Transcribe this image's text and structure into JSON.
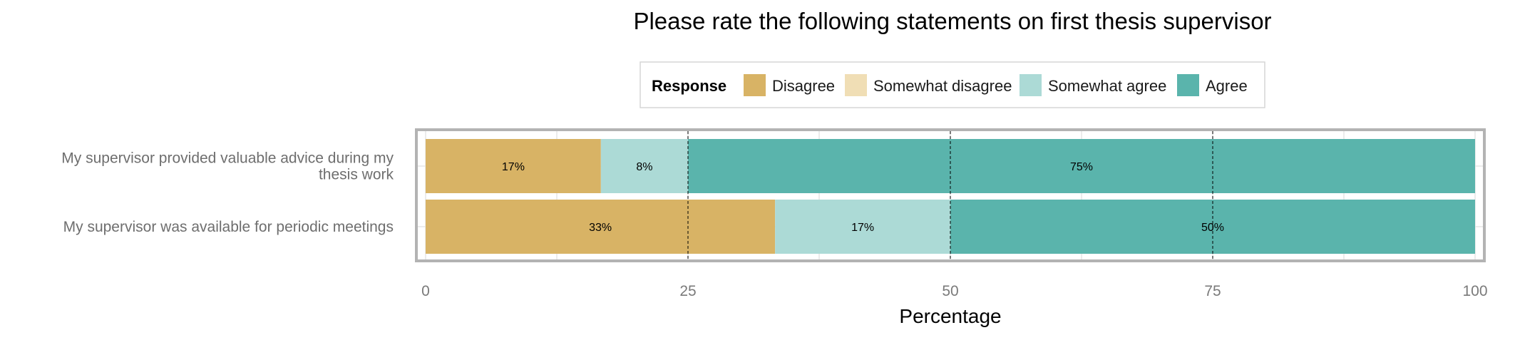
{
  "chart_data": {
    "type": "bar",
    "orientation": "horizontal",
    "stacked": true,
    "title": "Please rate the following statements on first thesis supervisor",
    "xlabel": "Percentage",
    "ylabel": "",
    "xlim": [
      0,
      100
    ],
    "xticks": [
      0,
      25,
      50,
      75,
      100
    ],
    "reference_lines": [
      25,
      50,
      75
    ],
    "grid": true,
    "legend": {
      "title": "Response",
      "position": "top",
      "entries": [
        "Disagree",
        "Somewhat disagree",
        "Somewhat agree",
        "Agree"
      ]
    },
    "categories": [
      [
        "My supervisor provided valuable advice during my",
        "thesis work"
      ],
      [
        "My supervisor was available for periodic meetings"
      ]
    ],
    "series": [
      {
        "name": "Disagree",
        "color": "#d8b365",
        "values": [
          16.7,
          33.3
        ],
        "labels": [
          "17%",
          "33%"
        ]
      },
      {
        "name": "Somewhat disagree",
        "color": "#f0deb5",
        "values": [
          0,
          0
        ],
        "labels": [
          "",
          ""
        ]
      },
      {
        "name": "Somewhat agree",
        "color": "#acdad6",
        "values": [
          8.3,
          16.7
        ],
        "labels": [
          "8%",
          "17%"
        ]
      },
      {
        "name": "Agree",
        "color": "#5ab4ac",
        "values": [
          75,
          50
        ],
        "labels": [
          "75%",
          "50%"
        ]
      }
    ]
  }
}
